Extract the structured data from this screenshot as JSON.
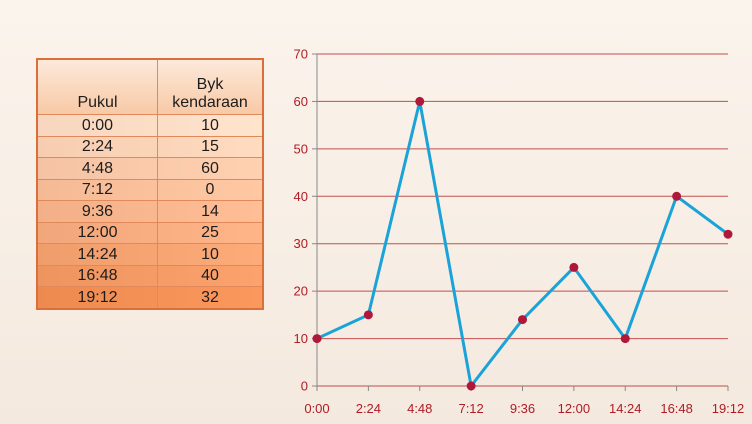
{
  "table": {
    "headers": [
      "Pukul",
      "Byk kendaraan"
    ],
    "rows": [
      [
        "0:00",
        "10"
      ],
      [
        "2:24",
        "15"
      ],
      [
        "4:48",
        "60"
      ],
      [
        "7:12",
        "0"
      ],
      [
        "9:36",
        "14"
      ],
      [
        "12:00",
        "25"
      ],
      [
        "14:24",
        "10"
      ],
      [
        "16:48",
        "40"
      ],
      [
        "19:12",
        "32"
      ]
    ]
  },
  "chart_data": {
    "type": "line",
    "categories": [
      "0:00",
      "2:24",
      "4:48",
      "7:12",
      "9:36",
      "12:00",
      "14:24",
      "16:48",
      "19:12"
    ],
    "series": [
      {
        "values": [
          10,
          15,
          60,
          0,
          14,
          25,
          10,
          40,
          32
        ]
      }
    ],
    "ylim": [
      0,
      70
    ],
    "yticks": [
      0,
      10,
      20,
      30,
      40,
      50,
      60,
      70
    ],
    "grid": true,
    "legend": "none",
    "colors": {
      "line": "#1aa3d9",
      "marker": "#b0183a",
      "grid": "#c0504d",
      "tick_text": "#b01c24"
    }
  },
  "colors": {
    "table_border": "#d9703b",
    "table_header_top": "#fde9da",
    "table_row_light": "#f8d6bf",
    "table_row_dark": "#ed8a50"
  }
}
